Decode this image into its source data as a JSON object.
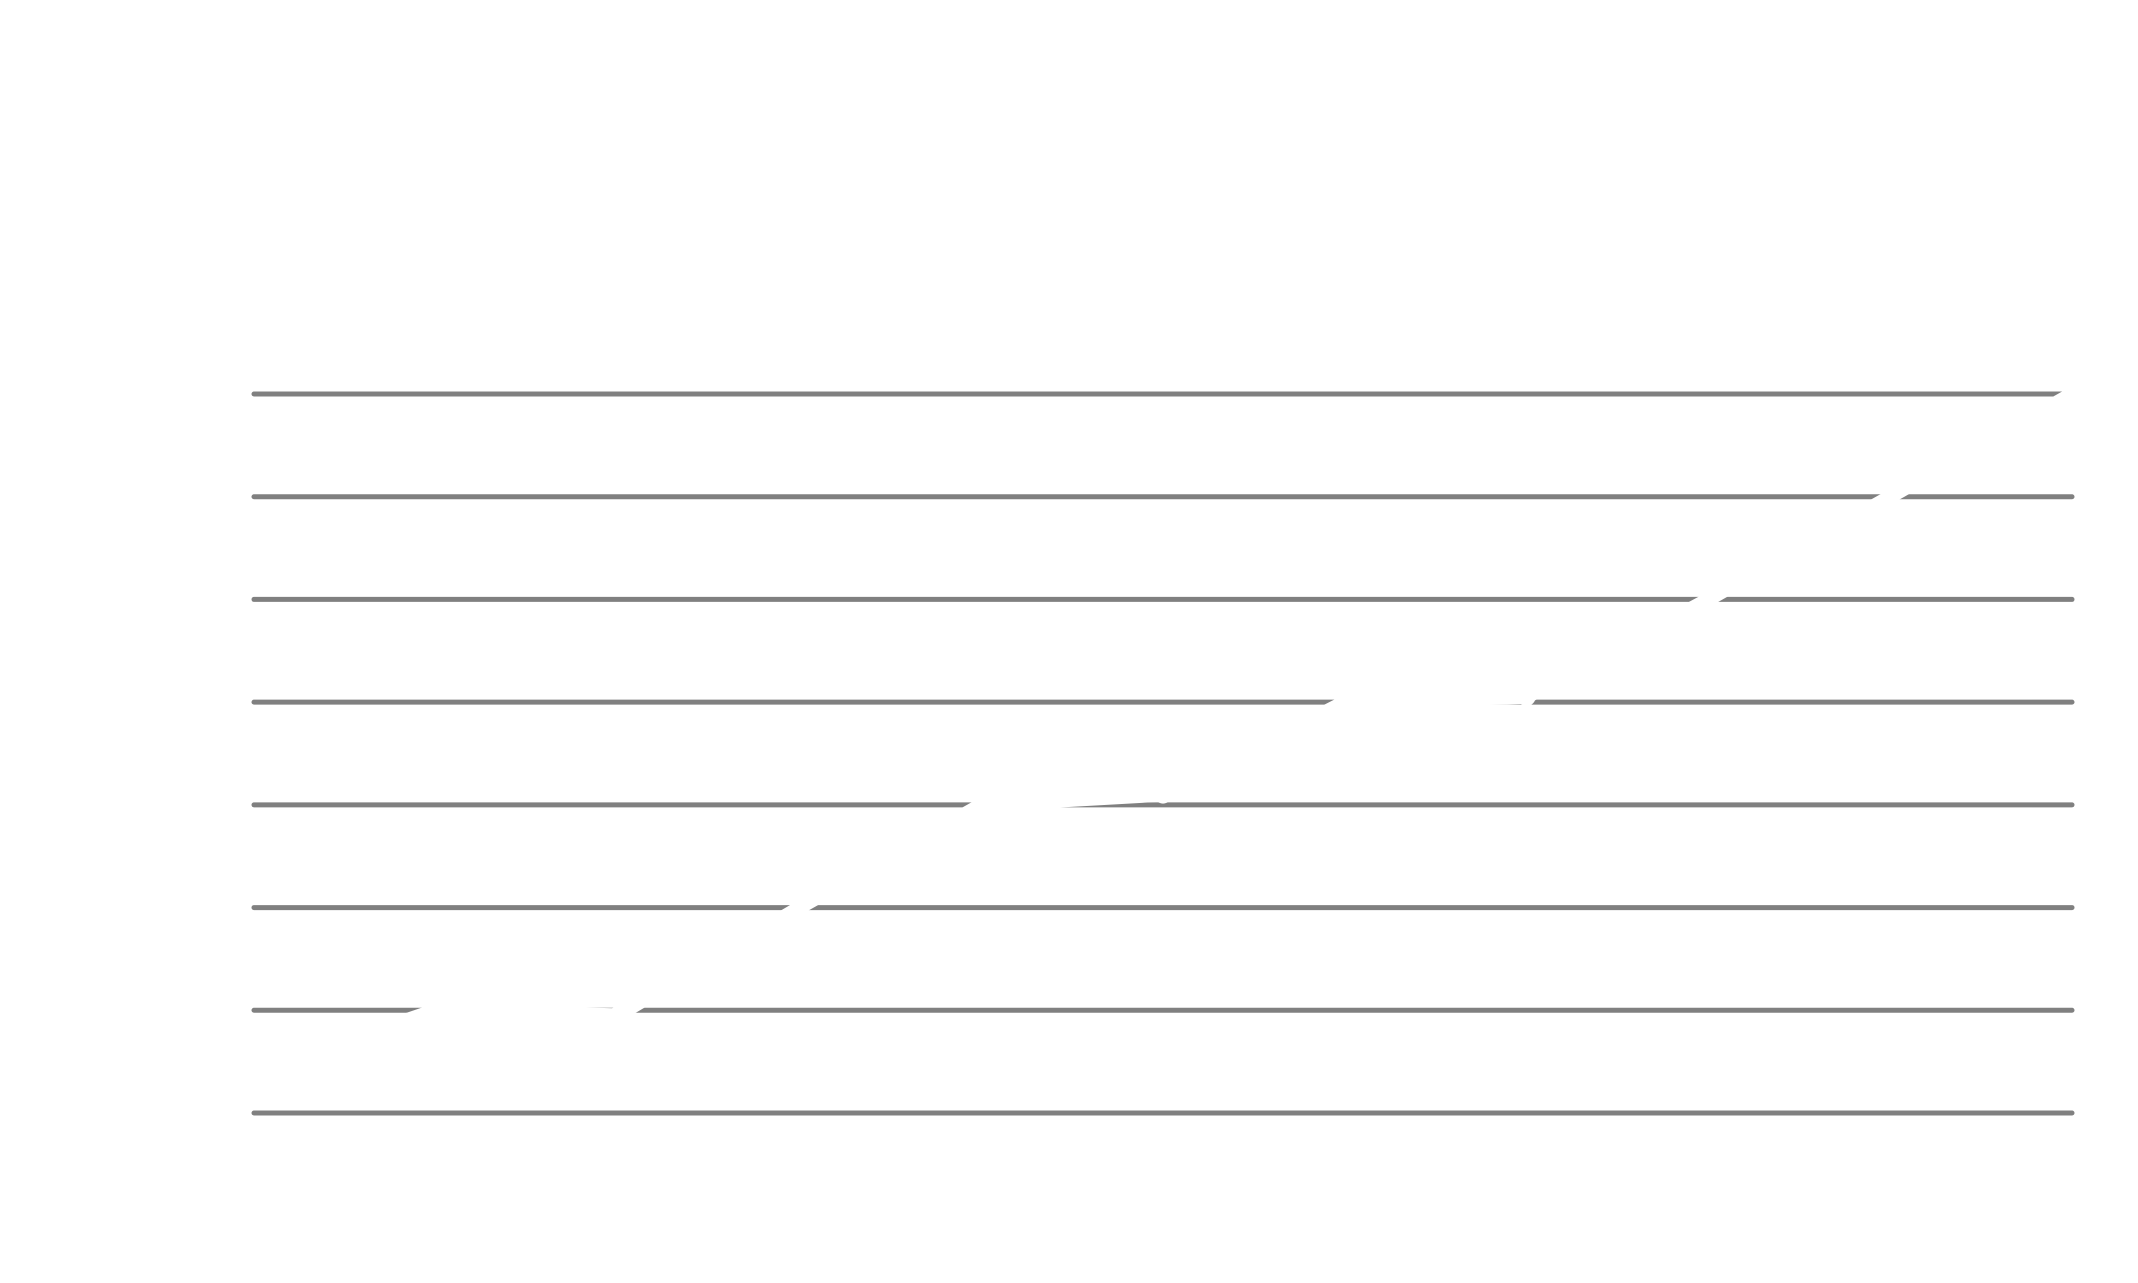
{
  "chart_data": {
    "type": "line",
    "title": "",
    "xlabel": "",
    "ylabel": "",
    "grid": true,
    "legend": "none",
    "gridline_count": 8,
    "colors": {
      "background": "#ffffff",
      "gridline": "#808080",
      "series": "#ffffff"
    },
    "x": [
      0,
      1,
      2,
      3,
      4,
      5,
      6,
      7,
      8,
      9,
      10
    ],
    "xlim": [
      0,
      10
    ],
    "ylim": [
      0,
      7
    ],
    "series": [
      {
        "values": [
          0.4,
          1.0,
          0.95,
          2.0,
          3.0,
          3.1,
          4.0,
          4.05,
          5.0,
          6.0,
          7.0
        ]
      }
    ]
  }
}
